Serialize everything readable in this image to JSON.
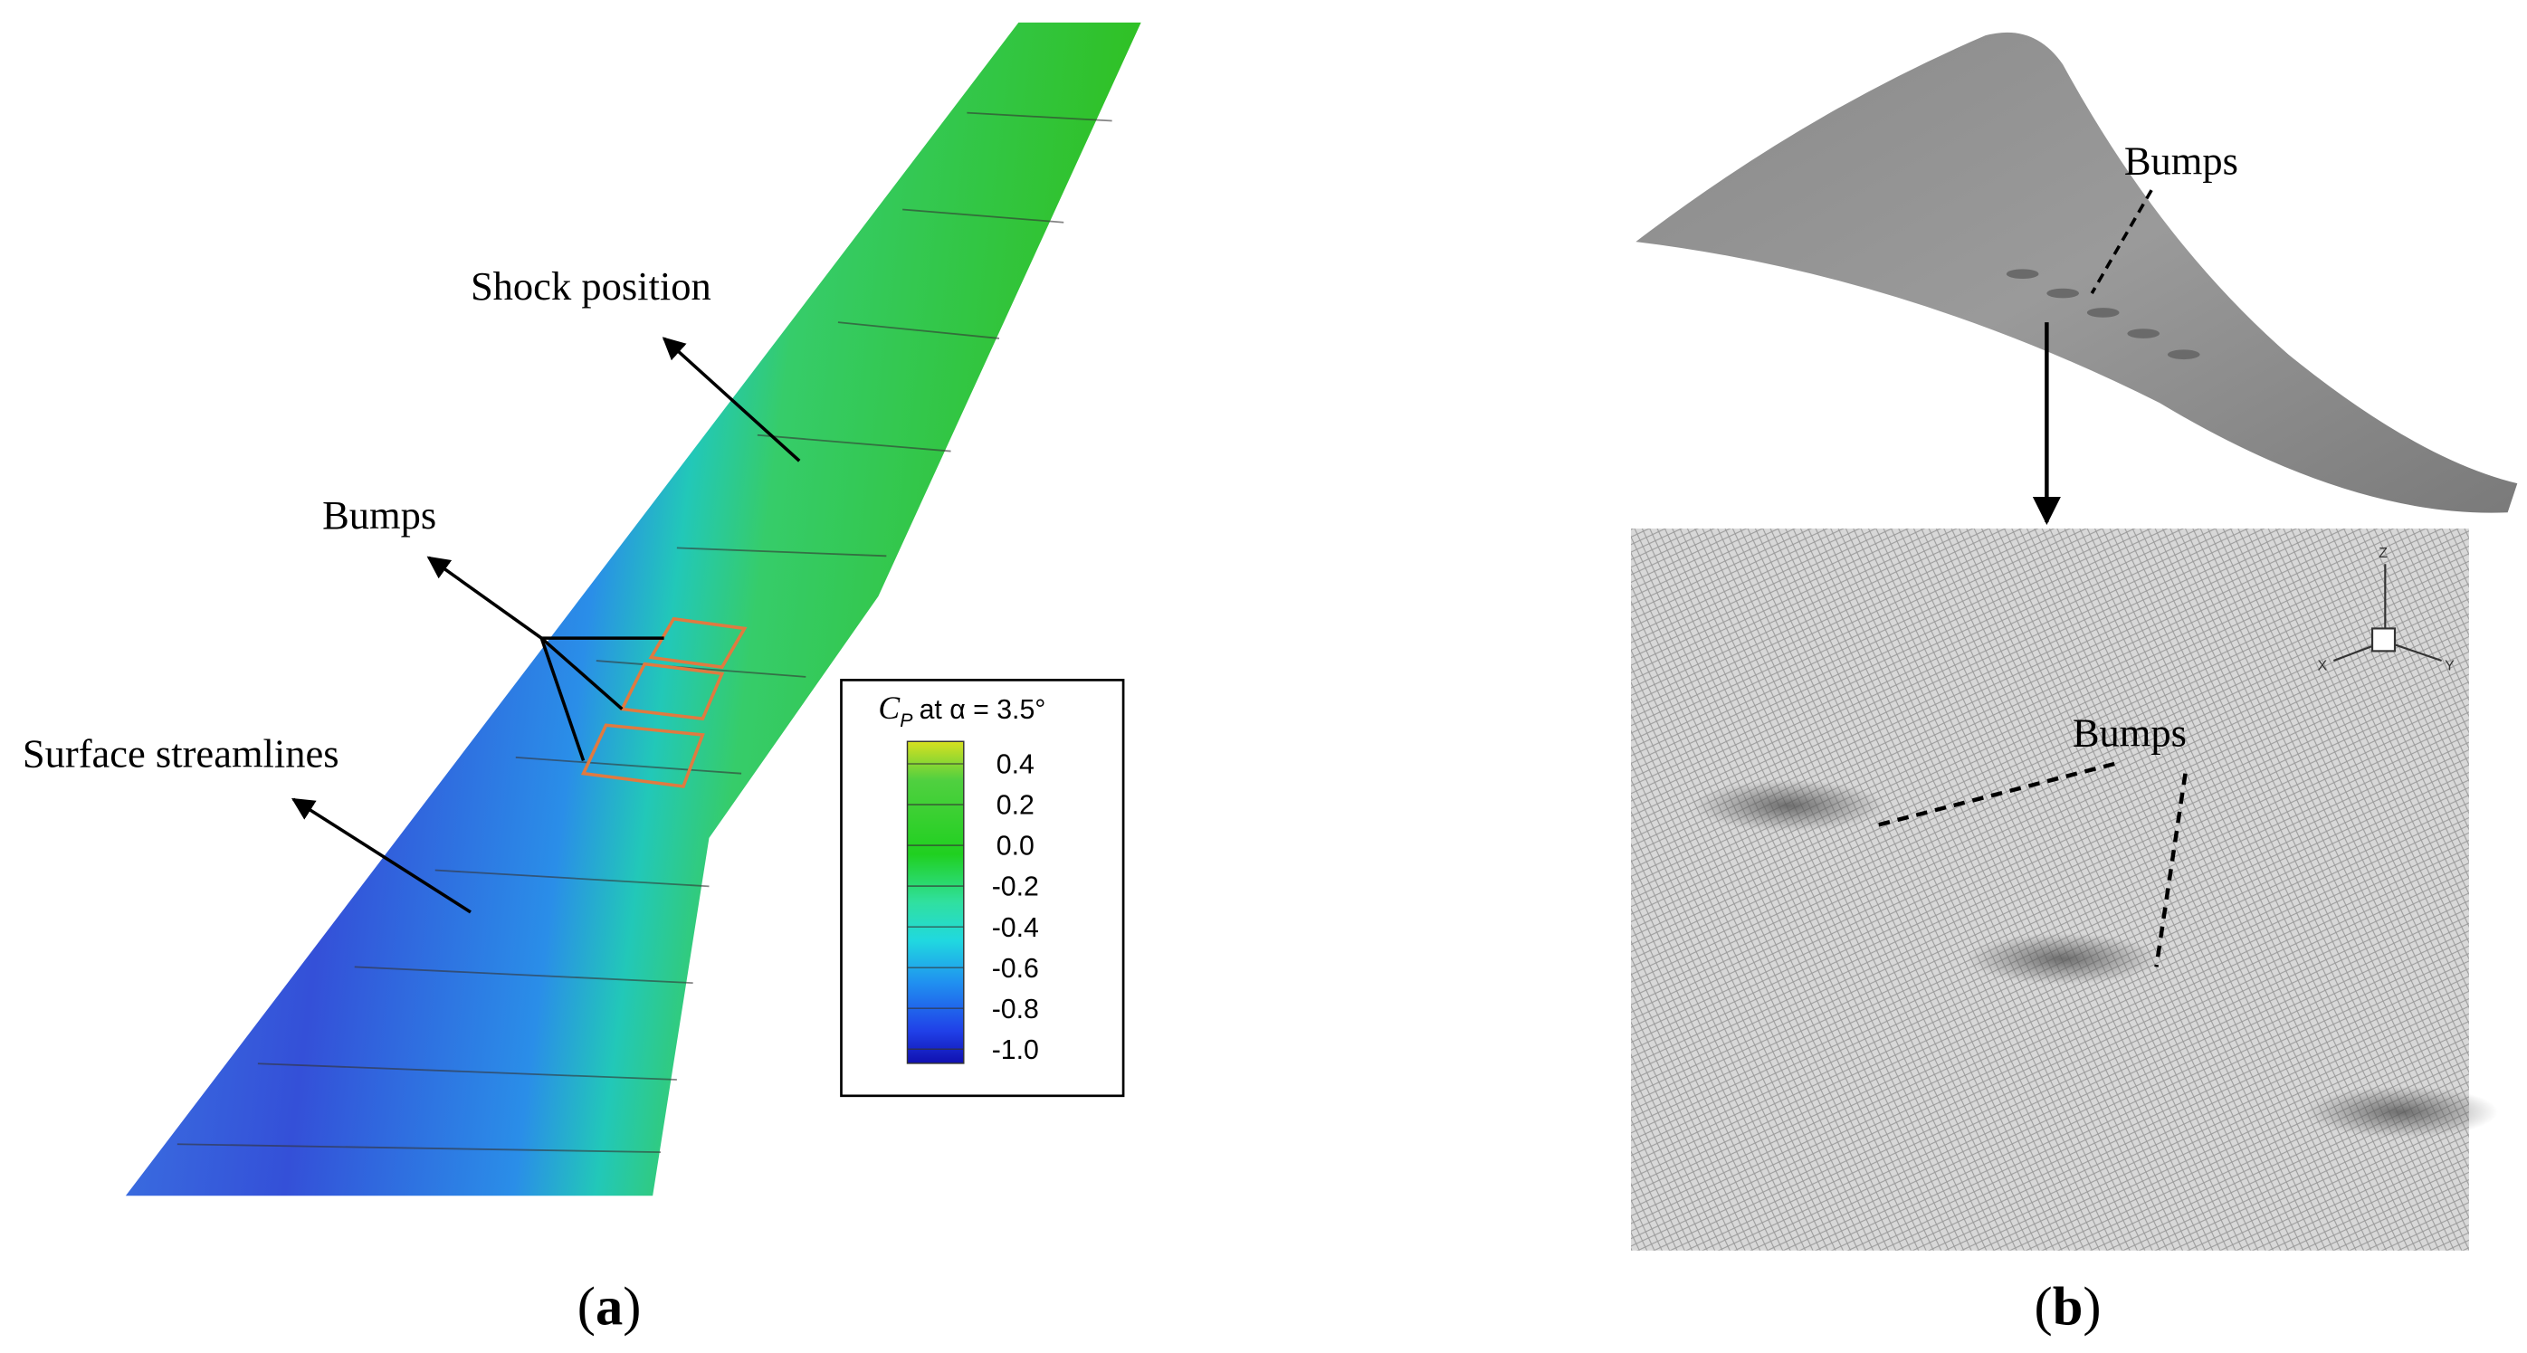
{
  "panel_a": {
    "labels": {
      "shock": "Shock position",
      "bumps": "Bumps",
      "streamlines": "Surface streamlines"
    },
    "colorbar": {
      "symbol": "C",
      "subscript": "P",
      "condition": "at α = 3.5°",
      "ticks": [
        0.4,
        0.2,
        {
          "value": 0,
          "label": "0.0"
        },
        -0.2,
        -0.4,
        -0.6,
        -0.8,
        {
          "value": -1,
          "label": "-1.0"
        }
      ]
    },
    "caption": {
      "open": "(",
      "letter": "a",
      "close": ")"
    }
  },
  "panel_b": {
    "labels": {
      "bumps_top": "Bumps",
      "bumps_detail": "Bumps"
    },
    "axes": {
      "z": "Z",
      "x": "X",
      "y": "Y"
    },
    "caption": {
      "open": "(",
      "letter": "b",
      "close": ")"
    }
  }
}
